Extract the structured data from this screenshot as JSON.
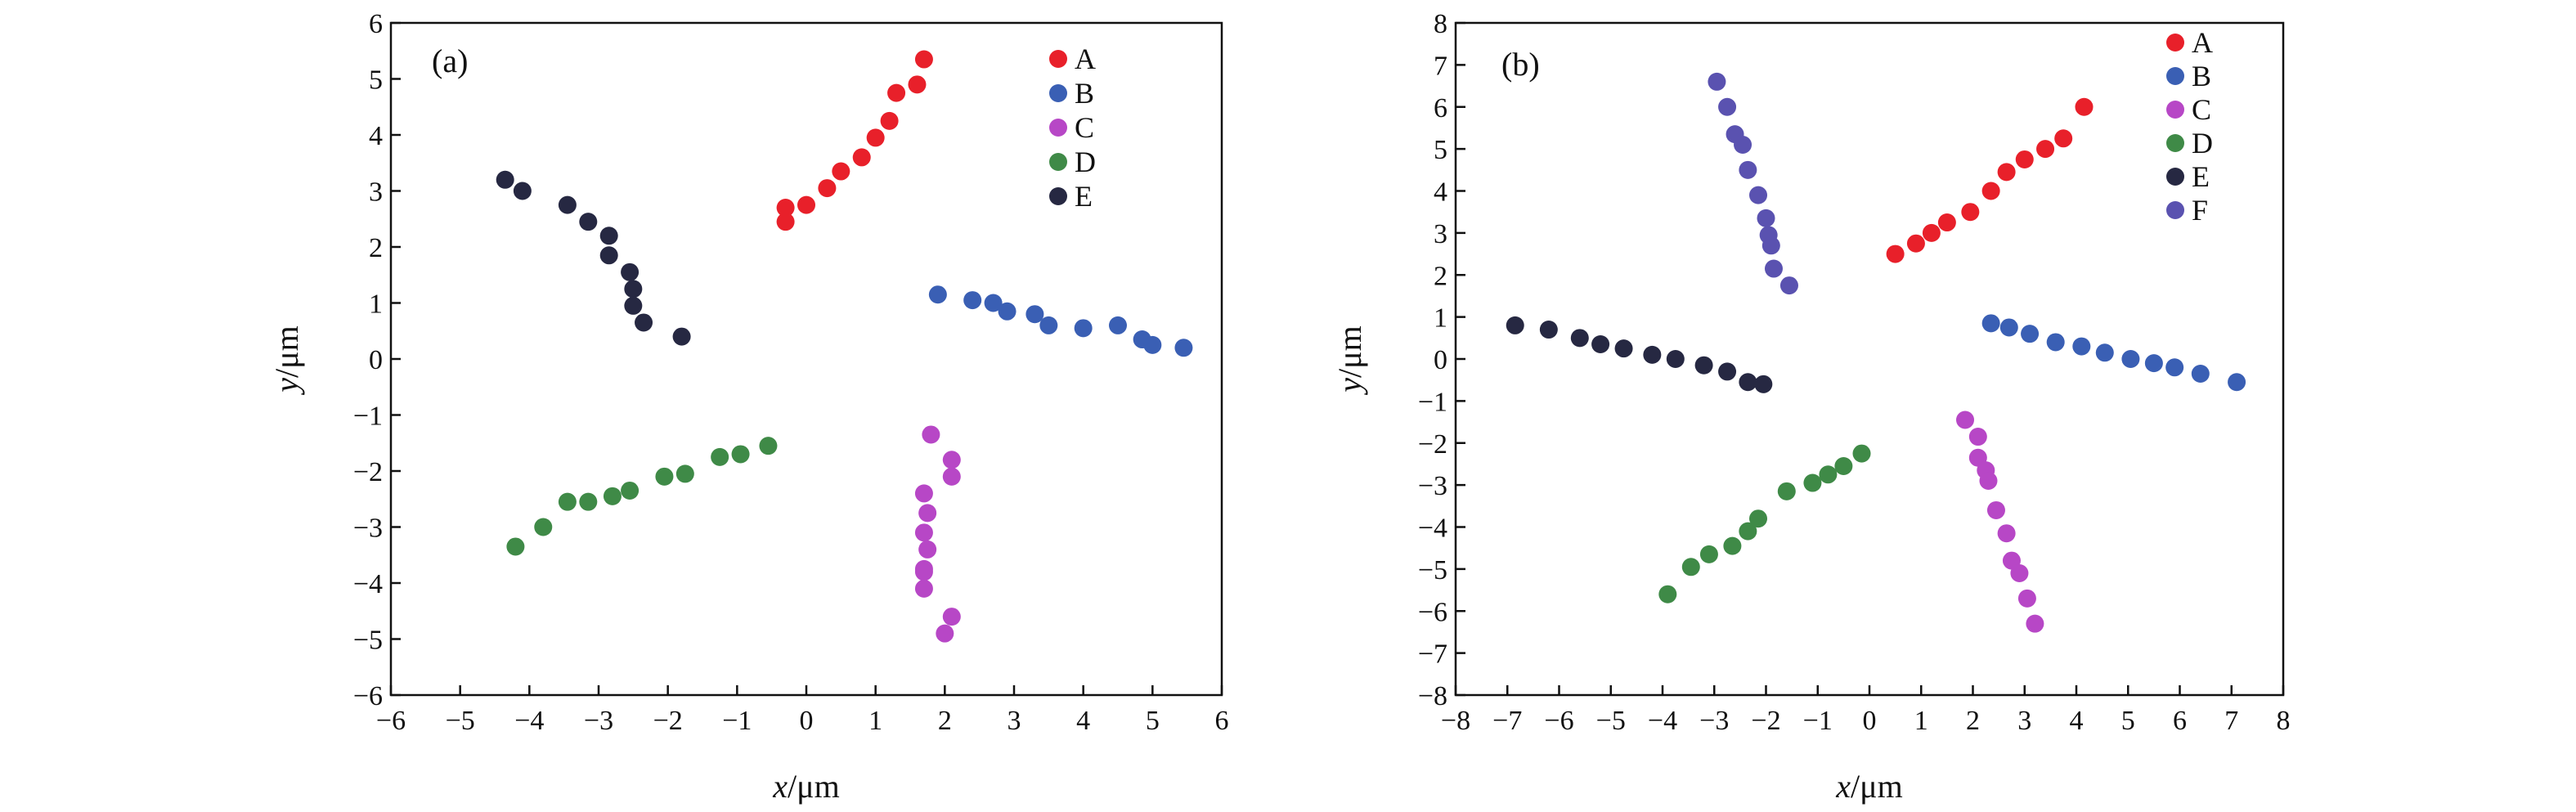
{
  "figure": {
    "panels": [
      {
        "id": "a",
        "panel_label": "(a)",
        "xlabel_var": "x",
        "ylabel_var": "y",
        "unit": "/μm"
      },
      {
        "id": "b",
        "panel_label": "(b)",
        "xlabel_var": "x",
        "ylabel_var": "y",
        "unit": "/μm"
      }
    ]
  },
  "colors": {
    "A": "#e8202a",
    "B": "#3a5fb4",
    "C": "#b747c6",
    "D": "#3f8a47",
    "E": "#262842",
    "F": "#5a52b0"
  },
  "chart_data": [
    {
      "type": "scatter",
      "panel_label": "(a)",
      "xlabel": "x/μm",
      "ylabel": "y/μm",
      "xlim": [
        -6,
        6
      ],
      "ylim": [
        -6,
        6
      ],
      "xticks": [
        -6,
        -5,
        -4,
        -3,
        -2,
        -1,
        0,
        1,
        2,
        3,
        4,
        5,
        6
      ],
      "yticks": [
        -6,
        -5,
        -4,
        -3,
        -2,
        -1,
        0,
        1,
        2,
        3,
        4,
        5,
        6
      ],
      "grid": false,
      "legend_position": "top-right",
      "series": [
        {
          "name": "A",
          "color": "#e8202a",
          "x": [
            -0.3,
            -0.3,
            0.0,
            0.3,
            0.5,
            0.8,
            1.0,
            1.2,
            1.3,
            1.6,
            1.7
          ],
          "y": [
            2.45,
            2.7,
            2.75,
            3.05,
            3.35,
            3.6,
            3.95,
            4.25,
            4.75,
            4.9,
            5.35
          ]
        },
        {
          "name": "B",
          "color": "#3a5fb4",
          "x": [
            1.9,
            2.4,
            2.7,
            2.9,
            3.3,
            3.5,
            4.0,
            4.5,
            4.85,
            5.0,
            5.45
          ],
          "y": [
            1.15,
            1.05,
            1.0,
            0.85,
            0.8,
            0.6,
            0.55,
            0.6,
            0.35,
            0.25,
            0.2
          ]
        },
        {
          "name": "C",
          "color": "#b747c6",
          "x": [
            1.8,
            2.1,
            2.1,
            1.7,
            1.75,
            1.7,
            1.75,
            1.7,
            1.7,
            1.7,
            2.1,
            2.0
          ],
          "y": [
            -1.35,
            -1.8,
            -2.1,
            -2.4,
            -2.75,
            -3.1,
            -3.4,
            -3.75,
            -3.8,
            -4.1,
            -4.6,
            -4.9
          ]
        },
        {
          "name": "D",
          "color": "#3f8a47",
          "x": [
            -4.2,
            -3.8,
            -3.45,
            -3.15,
            -2.8,
            -2.55,
            -2.05,
            -1.75,
            -1.25,
            -0.95,
            -0.55
          ],
          "y": [
            -3.35,
            -3.0,
            -2.55,
            -2.55,
            -2.45,
            -2.35,
            -2.1,
            -2.05,
            -1.75,
            -1.7,
            -1.55
          ]
        },
        {
          "name": "E",
          "color": "#262842",
          "x": [
            -4.35,
            -4.1,
            -3.45,
            -3.15,
            -2.85,
            -2.85,
            -2.55,
            -2.5,
            -2.5,
            -2.35,
            -1.8
          ],
          "y": [
            3.2,
            3.0,
            2.75,
            2.45,
            2.2,
            1.85,
            1.55,
            1.25,
            0.95,
            0.65,
            0.4
          ]
        }
      ]
    },
    {
      "type": "scatter",
      "panel_label": "(b)",
      "xlabel": "x/μm",
      "ylabel": "y/μm",
      "xlim": [
        -8,
        8
      ],
      "ylim": [
        -8,
        8
      ],
      "xticks": [
        -8,
        -7,
        -6,
        -5,
        -4,
        -3,
        -2,
        -1,
        0,
        1,
        2,
        3,
        4,
        5,
        6,
        7,
        8
      ],
      "yticks": [
        -8,
        -7,
        -6,
        -5,
        -4,
        -3,
        -2,
        -1,
        0,
        1,
        2,
        3,
        4,
        5,
        6,
        7,
        8
      ],
      "grid": false,
      "legend_position": "top-right",
      "series": [
        {
          "name": "A",
          "color": "#e8202a",
          "x": [
            0.5,
            0.9,
            1.2,
            1.5,
            1.95,
            2.35,
            2.65,
            3.0,
            3.4,
            3.75,
            4.15
          ],
          "y": [
            2.5,
            2.75,
            3.0,
            3.25,
            3.5,
            4.0,
            4.45,
            4.75,
            5.0,
            5.25,
            6.0
          ]
        },
        {
          "name": "B",
          "color": "#3a5fb4",
          "x": [
            2.35,
            2.7,
            3.1,
            3.6,
            4.1,
            4.55,
            5.05,
            5.5,
            5.9,
            6.4,
            7.1
          ],
          "y": [
            0.85,
            0.75,
            0.6,
            0.4,
            0.3,
            0.15,
            0.0,
            -0.1,
            -0.2,
            -0.35,
            -0.55
          ]
        },
        {
          "name": "C",
          "color": "#b747c6",
          "x": [
            1.85,
            2.1,
            2.1,
            2.25,
            2.3,
            2.45,
            2.65,
            2.75,
            2.9,
            3.05,
            3.2
          ],
          "y": [
            -1.45,
            -1.85,
            -2.35,
            -2.65,
            -2.9,
            -3.6,
            -4.15,
            -4.8,
            -5.1,
            -5.7,
            -6.3
          ]
        },
        {
          "name": "D",
          "color": "#3f8a47",
          "x": [
            -3.9,
            -3.45,
            -3.1,
            -2.65,
            -2.35,
            -2.15,
            -1.6,
            -1.1,
            -0.8,
            -0.5,
            -0.15
          ],
          "y": [
            -5.6,
            -4.95,
            -4.65,
            -4.45,
            -4.1,
            -3.8,
            -3.15,
            -2.95,
            -2.75,
            -2.55,
            -2.25
          ]
        },
        {
          "name": "E",
          "color": "#262842",
          "x": [
            -6.85,
            -6.2,
            -5.6,
            -5.2,
            -4.75,
            -4.2,
            -3.75,
            -3.2,
            -2.75,
            -2.35,
            -2.05
          ],
          "y": [
            0.8,
            0.7,
            0.5,
            0.35,
            0.25,
            0.1,
            0.0,
            -0.15,
            -0.3,
            -0.55,
            -0.6
          ]
        },
        {
          "name": "F",
          "color": "#5a52b0",
          "x": [
            -2.95,
            -2.75,
            -2.6,
            -2.45,
            -2.35,
            -2.15,
            -2.0,
            -1.95,
            -1.9,
            -1.85,
            -1.55
          ],
          "y": [
            6.6,
            6.0,
            5.35,
            5.1,
            4.5,
            3.9,
            3.35,
            2.95,
            2.7,
            2.15,
            1.75
          ]
        }
      ]
    }
  ]
}
